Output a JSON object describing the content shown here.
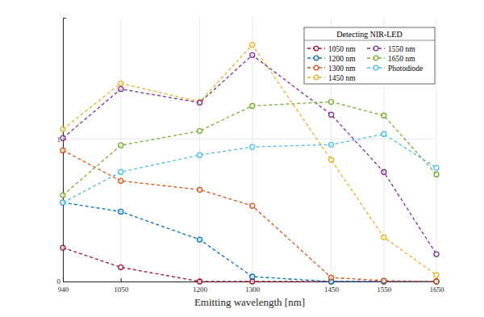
{
  "chart_data": {
    "type": "line",
    "x_label": "Emitting wavelength [nm]",
    "legend_title": "Detecting NIR-LED",
    "legend": "upper right",
    "grid": true,
    "marker": "circle",
    "line_style": "dashed",
    "x": [
      940,
      1050,
      1200,
      1300,
      1450,
      1550,
      1650
    ],
    "xlim": [
      940,
      1650
    ],
    "xticks": [
      940,
      1050,
      1200,
      1300,
      1450,
      1550,
      1650
    ],
    "ylim": [
      0,
      1.85
    ],
    "yticks": [
      0,
      1
    ],
    "series": [
      {
        "name": "1050 nm",
        "color": "#a2142f",
        "values": [
          0.237,
          0.1,
          0,
          0,
          0,
          0,
          0
        ]
      },
      {
        "name": "1200 nm",
        "color": "#0072bd",
        "values": [
          0.554,
          0.49,
          0.294,
          0.034,
          0,
          0,
          0
        ]
      },
      {
        "name": "1300 nm",
        "color": "#d95319",
        "values": [
          0.92,
          0.706,
          0.644,
          0.531,
          0.028,
          0.006,
          0
        ]
      },
      {
        "name": "1450 nm",
        "color": "#edb120",
        "values": [
          1.068,
          1.39,
          1.26,
          1.66,
          0.853,
          0.311,
          0.045
        ]
      },
      {
        "name": "1550 nm",
        "color": "#7e2f8e",
        "values": [
          1.006,
          1.35,
          1.254,
          1.588,
          1.17,
          0.768,
          0.192
        ]
      },
      {
        "name": "1650 nm",
        "color": "#77ac30",
        "values": [
          0.605,
          0.955,
          1.056,
          1.232,
          1.26,
          1.164,
          0.751
        ]
      },
      {
        "name": "Photodiode",
        "color": "#4dbeee",
        "values": [
          0.554,
          0.768,
          0.887,
          0.944,
          0.96,
          1.034,
          0.797
        ]
      }
    ]
  }
}
